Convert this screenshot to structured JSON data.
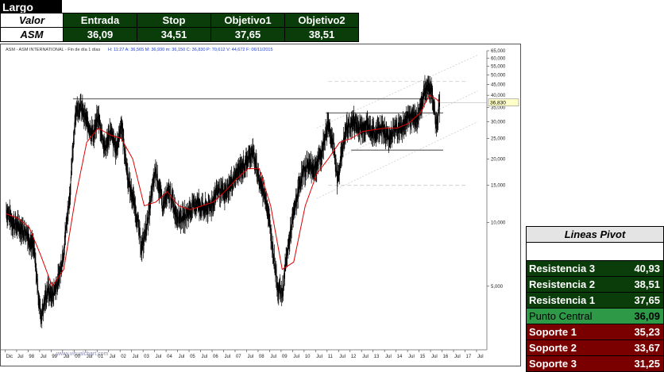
{
  "header": {
    "title": "Largo",
    "row_label_1": "Valor",
    "row_label_2": "ASM",
    "columns": [
      "Entrada",
      "Stop",
      "Objetivo1",
      "Objetivo2"
    ],
    "values": [
      "36,09",
      "34,51",
      "37,65",
      "38,51"
    ],
    "header_color": "#0b3d0b"
  },
  "chart": {
    "info_line": "ASM - ASM INTERNATIONAL - Fin de día 1 días",
    "info_values": "H: 11:27  A: 36,565  M: 36,930  m: 36,150  C: 36,830  P: 70,612  V: 44,672  F: 06/11/2015",
    "last_price_label": "36,830",
    "watermark": "www.visualchart.com"
  },
  "chart_data": {
    "type": "line",
    "title": "ASM - ASM INTERNATIONAL - Fin de día 1 días",
    "y_scale": "log",
    "ylim": [
      2.5,
      65
    ],
    "y_tick_labels": [
      "65,000",
      "60,000",
      "55,000",
      "50,000",
      "45,000",
      "40,000",
      "35,000",
      "30,000",
      "25,000",
      "20,000",
      "15,000",
      "10,000",
      "5,000"
    ],
    "y_tick_values": [
      65,
      60,
      55,
      50,
      45,
      40,
      35,
      30,
      25,
      20,
      15,
      10,
      5
    ],
    "x_tick_labels": [
      "Dic",
      "Jul",
      "98",
      "Jul",
      "99",
      "Jul",
      "00",
      "Jul",
      "01",
      "Jul",
      "02",
      "Jul",
      "03",
      "Jul",
      "04",
      "Jul",
      "05",
      "Jul",
      "06",
      "Jul",
      "07",
      "Jul",
      "08",
      "Jul",
      "09",
      "Jul",
      "10",
      "Jul",
      "11",
      "Jul",
      "12",
      "Jul",
      "13",
      "Jul",
      "14",
      "Jul",
      "15",
      "Jul",
      "16",
      "Jul",
      "17",
      "Jul"
    ],
    "series": [
      {
        "type": "price",
        "color": "#000000",
        "x": [
          1997.0,
          1997.3,
          1997.6,
          1997.9,
          1998.2,
          1998.5,
          1998.8,
          1999.0,
          1999.3,
          1999.5,
          1999.8,
          2000.0,
          2000.2,
          2000.5,
          2000.8,
          2001.0,
          2001.3,
          2001.5,
          2001.8,
          2002.0,
          2002.3,
          2002.6,
          2002.9,
          2003.2,
          2003.5,
          2003.8,
          2004.1,
          2004.4,
          2004.7,
          2005.0,
          2005.3,
          2005.6,
          2005.9,
          2006.2,
          2006.5,
          2006.8,
          2007.1,
          2007.4,
          2007.7,
          2008.0,
          2008.3,
          2008.6,
          2008.8,
          2009.0,
          2009.2,
          2009.5,
          2009.8,
          2010.1,
          2010.4,
          2010.7,
          2011.0,
          2011.2,
          2011.4,
          2011.6,
          2011.8,
          2012.1,
          2012.4,
          2012.7,
          2013.0,
          2013.3,
          2013.6,
          2013.9,
          2014.2,
          2014.5,
          2014.8,
          2015.1,
          2015.3,
          2015.5,
          2015.6,
          2015.7,
          2015.85
        ],
        "y": [
          11.5,
          10.0,
          9.5,
          9.0,
          7.5,
          3.6,
          4.8,
          4.5,
          5.5,
          7.5,
          15.0,
          33.0,
          36.0,
          30.0,
          26.0,
          32.0,
          22.0,
          27.0,
          22.0,
          30.0,
          16.0,
          12.0,
          7.5,
          11.0,
          18.0,
          12.0,
          14.0,
          11.0,
          10.5,
          11.5,
          12.5,
          11.5,
          12.0,
          14.5,
          13.5,
          15.5,
          17.5,
          19.0,
          22.0,
          16.0,
          13.0,
          7.5,
          5.0,
          4.6,
          7.0,
          11.0,
          16.0,
          19.0,
          18.0,
          21.0,
          30.0,
          24.0,
          16.0,
          22.0,
          28.0,
          30.0,
          28.0,
          29.0,
          26.0,
          29.0,
          25.0,
          28.0,
          28.0,
          32.0,
          30.0,
          38.0,
          45.0,
          42.0,
          35.0,
          29.0,
          36.83
        ]
      },
      {
        "type": "moving-average",
        "color": "#e00000",
        "x": [
          1997.0,
          1997.5,
          1998.0,
          1998.5,
          1999.0,
          1999.5,
          2000.0,
          2000.5,
          2001.0,
          2001.5,
          2002.0,
          2002.5,
          2003.0,
          2003.5,
          2004.0,
          2004.5,
          2005.0,
          2005.5,
          2006.0,
          2006.5,
          2007.0,
          2007.5,
          2008.0,
          2008.5,
          2009.0,
          2009.5,
          2010.0,
          2010.5,
          2011.0,
          2011.5,
          2012.0,
          2012.5,
          2013.0,
          2013.5,
          2014.0,
          2014.5,
          2015.0,
          2015.4,
          2015.7,
          2015.85
        ],
        "y": [
          11.0,
          10.5,
          9.5,
          7.0,
          5.0,
          6.0,
          13.0,
          24.0,
          28.0,
          26.0,
          25.0,
          20.0,
          12.0,
          12.5,
          14.0,
          12.0,
          11.5,
          12.0,
          12.5,
          14.0,
          16.0,
          18.0,
          18.0,
          12.0,
          6.0,
          6.5,
          12.0,
          17.0,
          20.0,
          24.0,
          25.0,
          27.0,
          27.5,
          28.0,
          28.0,
          29.5,
          33.0,
          40.0,
          38.5,
          37.0
        ]
      }
    ],
    "horizontal_lines": [
      {
        "y": 38.5,
        "x_start": 1999.9,
        "x_end": 2015.5,
        "color": "#777777"
      },
      {
        "y": 33.0,
        "x_start": 2010.9,
        "x_end": 2016.0,
        "color": "#777777"
      },
      {
        "y": 22.0,
        "x_start": 2012.0,
        "x_end": 2016.0,
        "color": "#777777"
      }
    ],
    "dashed_lines": [
      {
        "y": 46.5,
        "x_start": 2011.0,
        "x_end": 2017.0
      },
      {
        "y": 15.0,
        "x_start": 2011.0,
        "x_end": 2017.0
      }
    ],
    "channel_lines": [
      {
        "x": [
          2010.5,
          2017.5
        ],
        "y": [
          28.0,
          62.0
        ]
      },
      {
        "x": [
          2010.5,
          2017.5
        ],
        "y": [
          18.0,
          42.0
        ]
      },
      {
        "x": [
          2010.5,
          2017.5
        ],
        "y": [
          13.0,
          30.0
        ]
      }
    ]
  },
  "pivot": {
    "title": "Lineas Pivot",
    "rows": [
      {
        "label": "Resistencia 3",
        "value": "40,93",
        "kind": "res"
      },
      {
        "label": "Resistencia 2",
        "value": "38,51",
        "kind": "res"
      },
      {
        "label": "Resistencia 1",
        "value": "37,65",
        "kind": "res"
      },
      {
        "label": "Punto Central",
        "value": "36,09",
        "kind": "central"
      },
      {
        "label": "Soporte 1",
        "value": "35,23",
        "kind": "sup"
      },
      {
        "label": "Soporte 2",
        "value": "33,67",
        "kind": "sup"
      },
      {
        "label": "Soporte 3",
        "value": "31,25",
        "kind": "sup"
      }
    ]
  }
}
